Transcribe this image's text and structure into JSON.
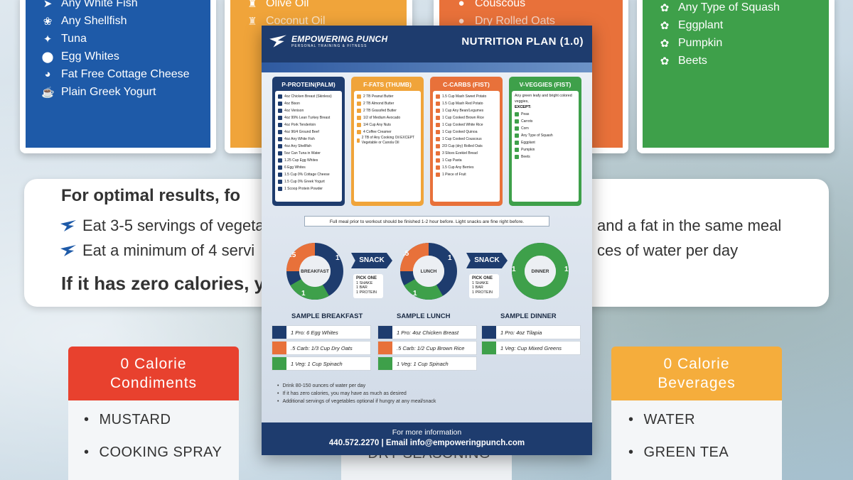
{
  "protein_card": {
    "items": [
      "Any White Fish",
      "Any Shellfish",
      "Tuna",
      "Egg Whites",
      "Fat Free Cottage Cheese",
      "Plain Greek Yogurt"
    ]
  },
  "fat_card": {
    "items": [
      "Olive Oil",
      "Coconut Oil"
    ]
  },
  "carb_card": {
    "items": [
      "Couscous",
      "Dry Rolled Oats"
    ]
  },
  "veg_card": {
    "items": [
      "Any Type of Squash",
      "Eggplant",
      "Pumpkin",
      "Beets"
    ]
  },
  "results": {
    "heading": "For optimal results, fo",
    "tip1_left": "Eat 3-5 servings of vegeta",
    "tip1_right": "and a fat in the same meal",
    "tip2_left": "Eat a minimum of 4 servi",
    "tip2_right": "ces of water per day",
    "tip3": "If it has zero calories, y"
  },
  "condiments": {
    "title_line1": "0 Calorie",
    "title_line2": "Condiments",
    "items": [
      "MUSTARD",
      "COOKING SPRAY"
    ]
  },
  "beverages": {
    "title_line1": "0 Calorie",
    "title_line2": "Beverages",
    "items": [
      "WATER",
      "GREEN TEA"
    ]
  },
  "middle_card": {
    "item": "DRY SEASONING"
  },
  "doc": {
    "brand_name": "EMPOWERING PUNCH",
    "brand_sub": "PERSONAL TRAINING & FITNESS",
    "title": "NUTRITION PLAN (1.0)",
    "columns": [
      {
        "title": "P-PROTEIN(PALM)",
        "color": "#1e3c6e",
        "items": [
          "4oz Chicken Breast (Skinless)",
          "4oz Bison",
          "4oz Venison",
          "4oz 99% Lean Turkey Breast",
          "4oz Pork Tenderloin",
          "4oz 96/4 Ground Beef",
          "4oz Any White Fish",
          "4oz Any Shellfish",
          "5oz Can Tuna in Water",
          "1.25 Cup Egg Whites",
          "6 Egg Whites",
          "1.5 Cup 0% Cottage Cheese",
          "1.5 Cup 0% Greek Yogurt",
          "1 Scoop Protein Powder"
        ]
      },
      {
        "title": "F-FATS (THUMB)",
        "color": "#f0a43a",
        "items": [
          "2 TB Peanut Butter",
          "2 TB Almond Butter",
          "2 TB Grassfed Butter",
          "1/2 of Medium Avocado",
          "1/4 Cup Any Nuts",
          "4 Coffee Creamer",
          "2 TB of Any Cooking Oil EXCEPT Vegetable or Canola Oil"
        ]
      },
      {
        "title": "C-CARBS (FIST)",
        "color": "#e8713a",
        "items": [
          "1.5 Cup Mash Sweet Potato",
          "1.5 Cup Mash Red Potato",
          "1 Cup Any Bean/Legumes",
          "1 Cup Cooked Brown Rice",
          "1 Cup Cooked White Rice",
          "1 Cup Cooked Quinoa",
          "1 Cup Cooked Couscous",
          "2/3 Cup (dry) Rolled Oats",
          "3 Slices Ezekiel Bread",
          "1 Cup Pasta",
          "1.5 Cup Any Berries",
          "1 Piece of Fruit"
        ]
      },
      {
        "title": "V-VEGGIES (FIST)",
        "color": "#3ea04a",
        "intro": "Any green leafy and bright colored veggies,",
        "except": "EXCEPT:",
        "items": [
          "Peas",
          "Carrots",
          "Corn",
          "Any Type of Squash",
          "Eggplant",
          "Pumpkin",
          "Beets"
        ]
      }
    ],
    "note": "Full meal prior to workout should be finished 1-2 hour before. Light snacks are fine right before.",
    "meals": [
      {
        "name": "BREAKFAST",
        "top_left": ".5",
        "right": "1",
        "bottom": "1"
      },
      {
        "name": "LUNCH",
        "top_left": ".5",
        "right": "1",
        "bottom": "1"
      },
      {
        "name": "DINNER",
        "left": "1",
        "right": "1"
      }
    ],
    "snack_label": "SNACK",
    "snack_opts": {
      "title": "PICK ONE",
      "o1": "1 SHAKE",
      "o2": "1 BAR",
      "o3": "1 PROTEIN"
    },
    "samples": [
      {
        "title": "SAMPLE BREAKFAST",
        "rows": [
          "1 Pro: 6 Egg Whites",
          ".5 Carb: 1/3 Cup Dry Oats",
          "1 Veg: 1 Cup Spinach"
        ]
      },
      {
        "title": "SAMPLE LUNCH",
        "rows": [
          "1 Pro: 4oz Chicken Breast",
          ".5 Carb: 1/2 Cup Brown Rice",
          "1 Veg: 1 Cup Spinach"
        ]
      },
      {
        "title": "SAMPLE DINNER",
        "rows": [
          "1 Pro: 4oz Tilapia",
          "1 Veg: Cup Mixed Greens"
        ]
      }
    ],
    "bullets": [
      "Drink 80-150 ounces of water per day",
      "If it has zero calories, you may have as much as desired",
      "Additional servings of vegetables optional if hungry at any meal/snack"
    ],
    "footer_l1": "For more information",
    "footer_l2": "440.572.2270 | Email info@empoweringpunch.com"
  },
  "colors": {
    "protein": "#1e5aa8",
    "fat": "#f0a43a",
    "carb": "#e8713a",
    "veg": "#3ea04a",
    "condiment": "#e8412e",
    "beverage": "#f5ad3c"
  }
}
